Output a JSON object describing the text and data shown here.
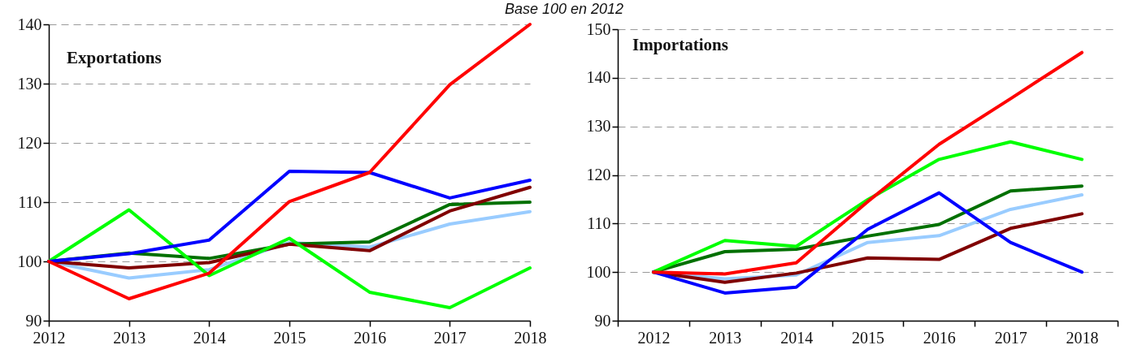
{
  "chart_data": [
    {
      "type": "line",
      "title": "Exportations",
      "subtitle": "Base 100 en 2012",
      "categories": [
        "2012",
        "2013",
        "2014",
        "2015",
        "2016",
        "2017",
        "2018"
      ],
      "series": [
        {
          "color": "#99ccff",
          "values": [
            100,
            97.2,
            98.6,
            103.2,
            102.4,
            106.3,
            108.4
          ]
        },
        {
          "color": "#007000",
          "values": [
            100,
            101.4,
            100.5,
            102.9,
            103.3,
            109.6,
            110.0
          ]
        },
        {
          "color": "#800000",
          "values": [
            100,
            98.9,
            99.8,
            102.9,
            101.8,
            108.5,
            112.5
          ]
        },
        {
          "color": "#00ff00",
          "values": [
            100,
            108.7,
            97.6,
            103.9,
            94.8,
            92.2,
            98.9
          ]
        },
        {
          "color": "#0000ff",
          "values": [
            100,
            101.3,
            103.6,
            115.2,
            115.0,
            110.7,
            113.7
          ]
        },
        {
          "color": "#ff0000",
          "values": [
            100,
            93.7,
            98.0,
            110.1,
            115.0,
            129.8,
            140
          ]
        }
      ],
      "ylim": [
        90,
        140
      ],
      "yticks": [
        90,
        100,
        110,
        120,
        130,
        140
      ],
      "grid": "y"
    },
    {
      "type": "line",
      "title": "Importations",
      "categories": [
        "2012",
        "2013",
        "2014",
        "2015",
        "2016",
        "2017",
        "2018"
      ],
      "series": [
        {
          "color": "#99ccff",
          "values": [
            100,
            98.6,
            99.4,
            106.1,
            107.5,
            112.9,
            115.9
          ]
        },
        {
          "color": "#007000",
          "values": [
            100,
            104.2,
            104.7,
            107.4,
            109.8,
            116.7,
            117.7
          ]
        },
        {
          "color": "#800000",
          "values": [
            100,
            97.9,
            99.8,
            102.9,
            102.6,
            109.0,
            112.0
          ]
        },
        {
          "color": "#00ff00",
          "values": [
            100,
            106.5,
            105.3,
            114.9,
            123.2,
            126.8,
            123.2
          ]
        },
        {
          "color": "#0000ff",
          "values": [
            100,
            95.7,
            96.9,
            108.8,
            116.3,
            106.1,
            100
          ]
        },
        {
          "color": "#ff0000",
          "values": [
            100,
            99.6,
            101.9,
            114.5,
            126.3,
            135.7,
            145.2
          ]
        }
      ],
      "ylim": [
        90,
        150
      ],
      "yticks": [
        90,
        100,
        110,
        120,
        130,
        140,
        150
      ],
      "grid": "y"
    }
  ]
}
